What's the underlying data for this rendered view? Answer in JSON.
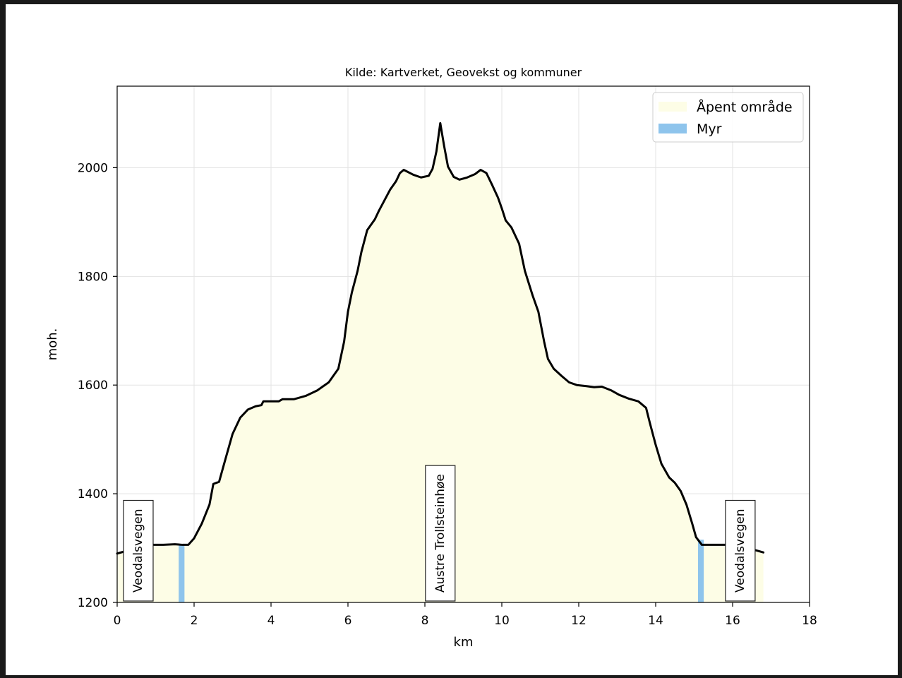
{
  "chart_data": {
    "type": "area",
    "title": "Kilde: Kartverket, Geovekst og kommuner",
    "xlabel": "km",
    "ylabel": "moh.",
    "xlim": [
      0,
      18
    ],
    "ylim": [
      1200,
      2150
    ],
    "x_ticks": [
      0,
      2,
      4,
      6,
      8,
      10,
      12,
      14,
      16,
      18
    ],
    "y_ticks": [
      1200,
      1400,
      1600,
      1800,
      2000
    ],
    "grid": true,
    "legend_position": "top-right",
    "legend": [
      {
        "label": "Åpent område",
        "color": "#fdfde6"
      },
      {
        "label": "Myr",
        "color": "#8ec4ec"
      }
    ],
    "line_color": "#000000",
    "profile": [
      [
        0.0,
        1290
      ],
      [
        0.3,
        1296
      ],
      [
        0.6,
        1300
      ],
      [
        0.9,
        1306
      ],
      [
        1.2,
        1306
      ],
      [
        1.5,
        1307
      ],
      [
        1.7,
        1306
      ],
      [
        1.85,
        1306
      ],
      [
        2.0,
        1318
      ],
      [
        2.2,
        1345
      ],
      [
        2.4,
        1380
      ],
      [
        2.5,
        1418
      ],
      [
        2.65,
        1422
      ],
      [
        2.8,
        1460
      ],
      [
        3.0,
        1510
      ],
      [
        3.2,
        1540
      ],
      [
        3.4,
        1555
      ],
      [
        3.6,
        1561
      ],
      [
        3.75,
        1563
      ],
      [
        3.8,
        1570
      ],
      [
        4.2,
        1570
      ],
      [
        4.3,
        1574
      ],
      [
        4.6,
        1574
      ],
      [
        4.9,
        1580
      ],
      [
        5.2,
        1590
      ],
      [
        5.5,
        1605
      ],
      [
        5.75,
        1630
      ],
      [
        5.9,
        1680
      ],
      [
        6.0,
        1735
      ],
      [
        6.1,
        1770
      ],
      [
        6.25,
        1810
      ],
      [
        6.35,
        1845
      ],
      [
        6.5,
        1885
      ],
      [
        6.7,
        1905
      ],
      [
        6.8,
        1920
      ],
      [
        6.95,
        1940
      ],
      [
        7.1,
        1960
      ],
      [
        7.25,
        1975
      ],
      [
        7.35,
        1990
      ],
      [
        7.45,
        1996
      ],
      [
        7.7,
        1987
      ],
      [
        7.9,
        1982
      ],
      [
        8.1,
        1985
      ],
      [
        8.2,
        1998
      ],
      [
        8.3,
        2030
      ],
      [
        8.4,
        2082
      ],
      [
        8.5,
        2040
      ],
      [
        8.6,
        2002
      ],
      [
        8.75,
        1983
      ],
      [
        8.9,
        1978
      ],
      [
        9.1,
        1982
      ],
      [
        9.3,
        1988
      ],
      [
        9.45,
        1996
      ],
      [
        9.6,
        1990
      ],
      [
        9.75,
        1968
      ],
      [
        9.9,
        1945
      ],
      [
        10.0,
        1925
      ],
      [
        10.1,
        1903
      ],
      [
        10.25,
        1890
      ],
      [
        10.45,
        1860
      ],
      [
        10.6,
        1810
      ],
      [
        10.8,
        1765
      ],
      [
        10.95,
        1735
      ],
      [
        11.1,
        1680
      ],
      [
        11.2,
        1648
      ],
      [
        11.35,
        1630
      ],
      [
        11.55,
        1617
      ],
      [
        11.75,
        1605
      ],
      [
        11.95,
        1600
      ],
      [
        12.2,
        1598
      ],
      [
        12.4,
        1596
      ],
      [
        12.6,
        1597
      ],
      [
        12.85,
        1590
      ],
      [
        13.05,
        1582
      ],
      [
        13.3,
        1575
      ],
      [
        13.55,
        1570
      ],
      [
        13.75,
        1558
      ],
      [
        13.85,
        1530
      ],
      [
        14.0,
        1490
      ],
      [
        14.15,
        1455
      ],
      [
        14.35,
        1430
      ],
      [
        14.5,
        1420
      ],
      [
        14.65,
        1405
      ],
      [
        14.8,
        1380
      ],
      [
        14.95,
        1345
      ],
      [
        15.05,
        1320
      ],
      [
        15.2,
        1306
      ],
      [
        15.4,
        1306
      ],
      [
        15.6,
        1306
      ],
      [
        15.9,
        1306
      ],
      [
        16.1,
        1305
      ],
      [
        16.3,
        1303
      ],
      [
        16.5,
        1298
      ],
      [
        16.8,
        1292
      ]
    ],
    "myr_bands": [
      [
        1.6,
        1.75
      ],
      [
        15.1,
        15.25
      ]
    ],
    "open_area_range": [
      0.0,
      16.8
    ],
    "place_labels": [
      {
        "text": "Veodalsvegen",
        "x": 0.55
      },
      {
        "text": "Austre Trollsteinhøe",
        "x": 8.4
      },
      {
        "text": "Veodalsvegen",
        "x": 16.2
      }
    ]
  }
}
